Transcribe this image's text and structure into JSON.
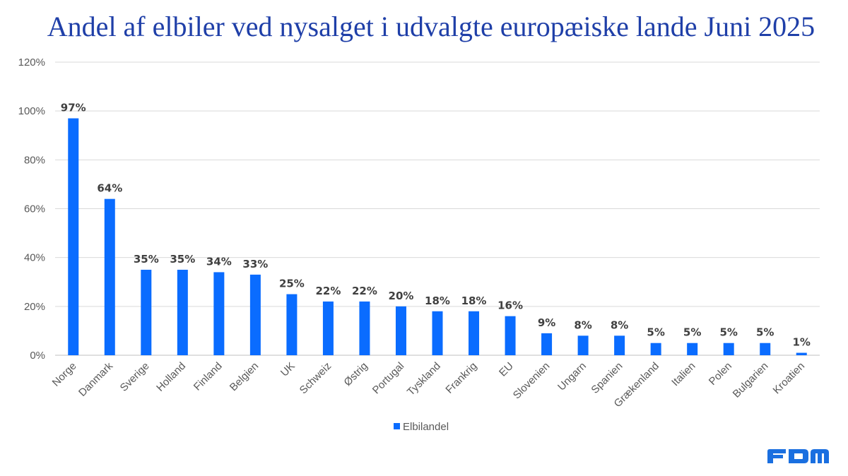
{
  "chart_data": {
    "type": "bar",
    "title": "Andel af elbiler ved nysalget i udvalgte europæiske lande Juni 2025",
    "categories": [
      "Norge",
      "Danmark",
      "Sverige",
      "Holland",
      "Finland",
      "Belgien",
      "UK",
      "Schweiz",
      "Østrig",
      "Portugal",
      "Tyskland",
      "Frankrig",
      "EU",
      "Slovenien",
      "Ungarn",
      "Spanien",
      "Grækenland",
      "Italien",
      "Polen",
      "Bulgarien",
      "Kroatien"
    ],
    "series": [
      {
        "name": "Elbilandel",
        "values": [
          97,
          64,
          35,
          35,
          34,
          33,
          25,
          22,
          22,
          20,
          18,
          18,
          16,
          9,
          8,
          8,
          5,
          5,
          5,
          5,
          1
        ],
        "labels": [
          "97%",
          "64%",
          "35%",
          "35%",
          "34%",
          "33%",
          "25%",
          "22%",
          "22%",
          "20%",
          "18%",
          "18%",
          "16%",
          "9%",
          "8%",
          "8%",
          "5%",
          "5%",
          "5%",
          "5%",
          "1%"
        ]
      }
    ],
    "ylim": [
      0,
      120
    ],
    "yticks": [
      "0%",
      "20%",
      "40%",
      "60%",
      "80%",
      "100%",
      "120%"
    ],
    "grid": true,
    "legend_position": "bottom",
    "color": "#0a6cff"
  },
  "logo_text": "FDM",
  "logo_color": "#1a6fe0"
}
